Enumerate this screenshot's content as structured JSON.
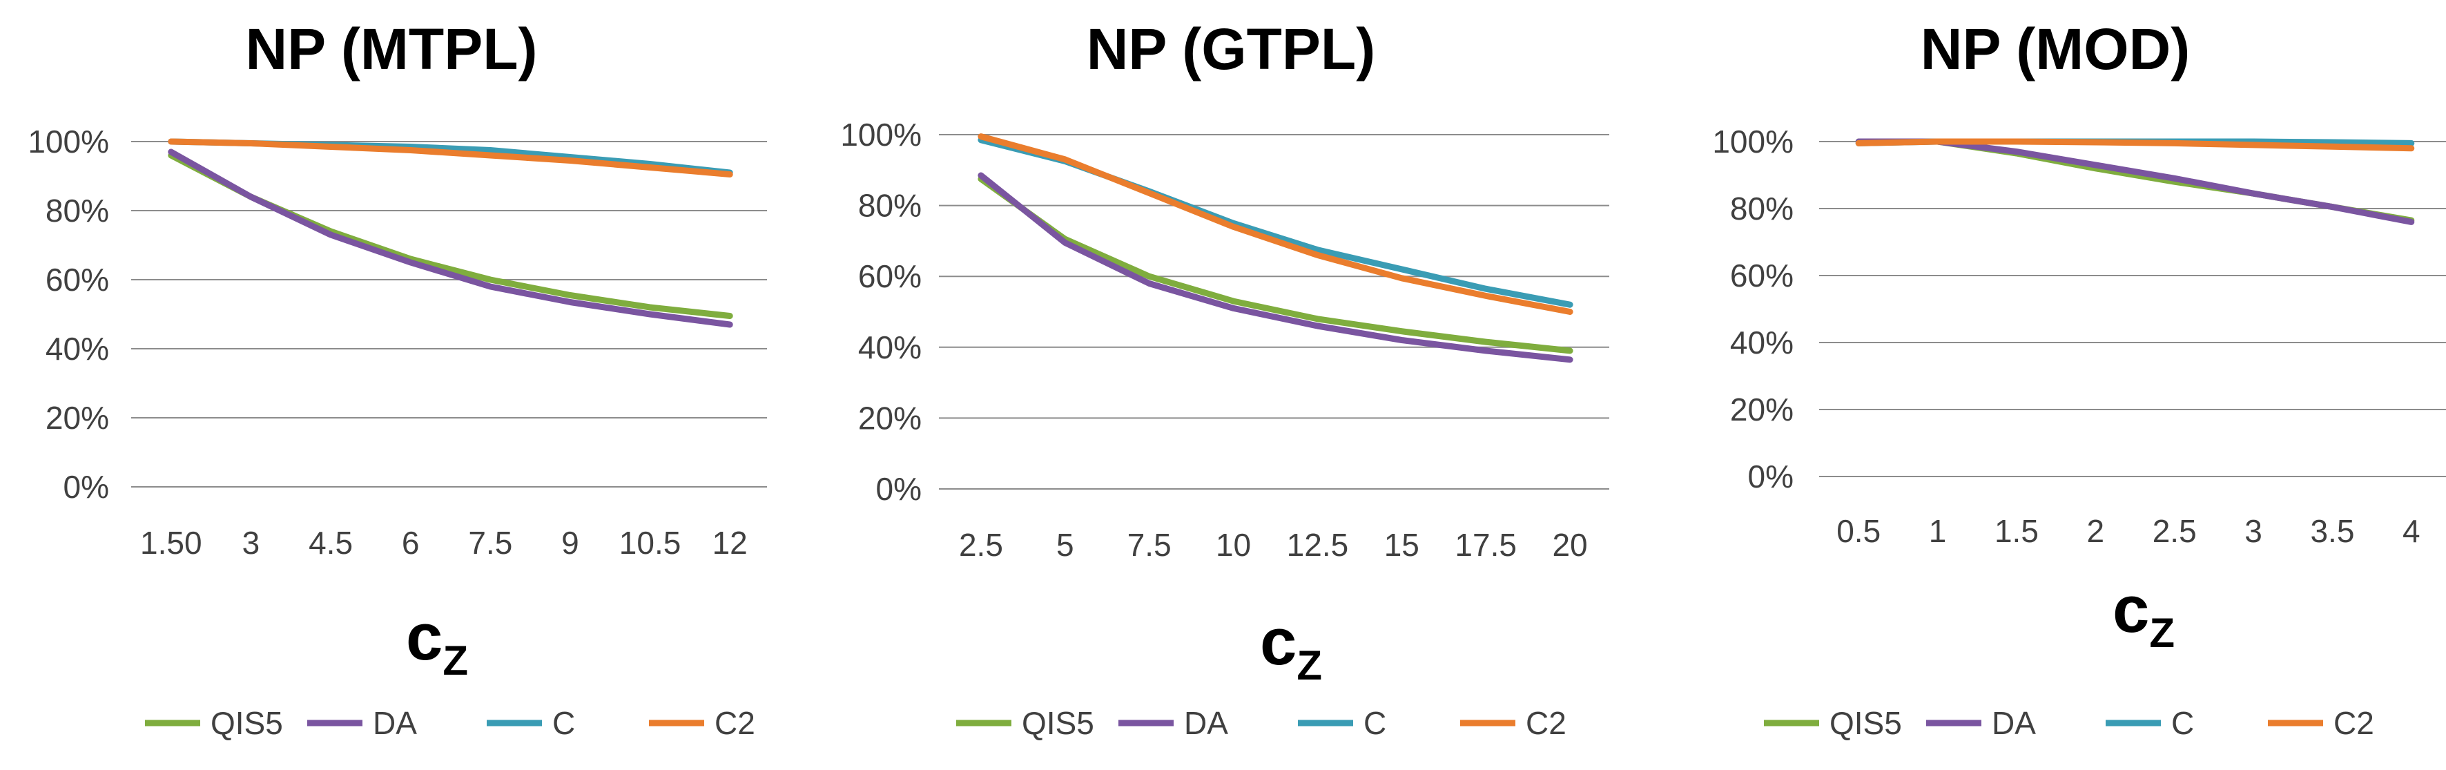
{
  "chart_data": [
    {
      "type": "line",
      "title": "NP (MTPL)",
      "xlabel_main": "c",
      "xlabel_sub": "Z",
      "ylabel": "",
      "ylim": [
        0,
        100
      ],
      "ytick_labels": [
        "0%",
        "20%",
        "40%",
        "60%",
        "80%",
        "100%"
      ],
      "categories": [
        "1.50",
        "3",
        "4.5",
        "6",
        "7.5",
        "9",
        "10.5",
        "12"
      ],
      "series": [
        {
          "name": "QIS5",
          "color": "#7fad3e",
          "values": [
            96,
            84,
            74,
            66,
            60,
            55.5,
            52,
            49.5
          ]
        },
        {
          "name": "DA",
          "color": "#7a55a0",
          "values": [
            97,
            84,
            73,
            65,
            58,
            53.5,
            50,
            47
          ]
        },
        {
          "name": "C",
          "color": "#3a9cb4",
          "values": [
            100,
            99.5,
            99,
            98.5,
            97.5,
            95.5,
            93.5,
            91
          ]
        },
        {
          "name": "C2",
          "color": "#ea7d2d",
          "values": [
            100,
            99.5,
            98.5,
            97.5,
            96,
            94.5,
            92.5,
            90.5
          ]
        }
      ]
    },
    {
      "type": "line",
      "title": "NP (GTPL)",
      "xlabel_main": "c",
      "xlabel_sub": "Z",
      "ylabel": "",
      "ylim": [
        0,
        100
      ],
      "ytick_labels": [
        "0%",
        "20%",
        "40%",
        "60%",
        "80%",
        "100%"
      ],
      "categories": [
        "2.5",
        "5",
        "7.5",
        "10",
        "12.5",
        "15",
        "17.5",
        "20"
      ],
      "series": [
        {
          "name": "QIS5",
          "color": "#7fad3e",
          "values": [
            87.5,
            70.5,
            60,
            53,
            48,
            44.5,
            41.5,
            39
          ]
        },
        {
          "name": "DA",
          "color": "#7a55a0",
          "values": [
            88.5,
            69.5,
            58,
            51,
            46,
            42,
            39,
            36.5
          ]
        },
        {
          "name": "C",
          "color": "#3a9cb4",
          "values": [
            98.5,
            92.5,
            84,
            75,
            67.5,
            62,
            56.5,
            52
          ]
        },
        {
          "name": "C2",
          "color": "#ea7d2d",
          "values": [
            99.5,
            93,
            83.5,
            74,
            66,
            59.5,
            54.5,
            50
          ]
        }
      ]
    },
    {
      "type": "line",
      "title": "NP (MOD)",
      "xlabel_main": "c",
      "xlabel_sub": "Z",
      "ylabel": "",
      "ylim": [
        0,
        100
      ],
      "ytick_labels": [
        "0%",
        "20%",
        "40%",
        "60%",
        "80%",
        "100%"
      ],
      "categories": [
        "0.5",
        "1",
        "1.5",
        "2",
        "2.5",
        "3",
        "3.5",
        "4"
      ],
      "series": [
        {
          "name": "QIS5",
          "color": "#7fad3e",
          "values": [
            100,
            100,
            96.5,
            92,
            88,
            84.5,
            80.5,
            76.5
          ]
        },
        {
          "name": "DA",
          "color": "#7a55a0",
          "values": [
            100,
            100,
            97,
            93,
            89,
            84.5,
            80.5,
            76
          ]
        },
        {
          "name": "C",
          "color": "#3a9cb4",
          "values": [
            99.5,
            100,
            100,
            100,
            100,
            100,
            99.8,
            99.5
          ]
        },
        {
          "name": "C2",
          "color": "#ea7d2d",
          "values": [
            99.5,
            100,
            100,
            99.8,
            99.5,
            99,
            98.5,
            98
          ]
        }
      ]
    }
  ]
}
